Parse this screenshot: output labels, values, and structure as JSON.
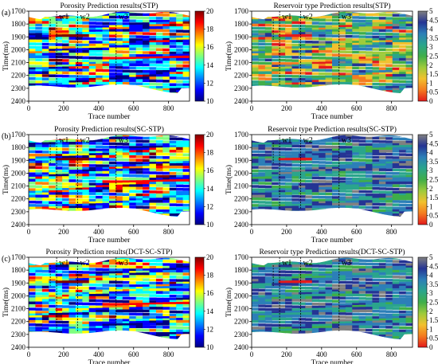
{
  "chart_data": [
    {
      "type": "heatmap",
      "panel_label": "(a)",
      "title": "Porosity Prediction results(STP)",
      "xlabel": "Trace number",
      "ylabel": "Time(ms)",
      "xlim": [
        0,
        920
      ],
      "ylim": [
        2400,
        1700
      ],
      "x_ticks": [
        0,
        200,
        400,
        600,
        800
      ],
      "y_ticks": [
        1700,
        1800,
        1900,
        2000,
        2100,
        2200,
        2300,
        2400
      ],
      "colorbar": {
        "range": [
          10,
          20
        ],
        "ticks": [
          10,
          12,
          14,
          16,
          18,
          20
        ],
        "colormap": "jet"
      },
      "wells": [
        {
          "name": "w1",
          "trace": 160
        },
        {
          "name": "w2",
          "trace": 280
        },
        {
          "name": "w3",
          "trace": 500
        }
      ]
    },
    {
      "type": "heatmap",
      "panel_label": "",
      "title": "Reservoir type Prediction results(STP)",
      "xlabel": "Trace number",
      "ylabel": "Time(ms)",
      "xlim": [
        0,
        920
      ],
      "ylim": [
        2400,
        1700
      ],
      "x_ticks": [
        0,
        200,
        400,
        600,
        800
      ],
      "y_ticks": [
        1700,
        1800,
        1900,
        2000,
        2100,
        2200,
        2300,
        2400
      ],
      "colorbar": {
        "range": [
          0,
          5
        ],
        "ticks": [
          0,
          0.5,
          1,
          1.5,
          2,
          2.5,
          3,
          3.5,
          4,
          4.5,
          5
        ],
        "colormap": "reservoir"
      },
      "wells": [
        {
          "name": "w1",
          "trace": 160
        },
        {
          "name": "w2",
          "trace": 280
        },
        {
          "name": "w3",
          "trace": 500
        }
      ]
    },
    {
      "type": "heatmap",
      "panel_label": "(b)",
      "title": "Porosity Prediction results(SC-STP)",
      "xlabel": "Trace number",
      "ylabel": "Time(ms)",
      "xlim": [
        0,
        920
      ],
      "ylim": [
        2400,
        1700
      ],
      "x_ticks": [
        0,
        200,
        400,
        600,
        800
      ],
      "y_ticks": [
        1700,
        1800,
        1900,
        2000,
        2100,
        2200,
        2300,
        2400
      ],
      "colorbar": {
        "range": [
          10,
          20
        ],
        "ticks": [
          10,
          12,
          14,
          16,
          18,
          20
        ],
        "colormap": "jet"
      },
      "wells": [
        {
          "name": "w1",
          "trace": 160
        },
        {
          "name": "w2",
          "trace": 280
        },
        {
          "name": "w3",
          "trace": 500
        }
      ]
    },
    {
      "type": "heatmap",
      "panel_label": "",
      "title": "Reservoir type Prediction results(SC-STP)",
      "xlabel": "Trace number",
      "ylabel": "Time(ms)",
      "xlim": [
        0,
        920
      ],
      "ylim": [
        2400,
        1700
      ],
      "x_ticks": [
        0,
        200,
        400,
        600,
        800
      ],
      "y_ticks": [
        1700,
        1800,
        1900,
        2000,
        2100,
        2200,
        2300,
        2400
      ],
      "colorbar": {
        "range": [
          0,
          5
        ],
        "ticks": [
          0,
          0.5,
          1,
          1.5,
          2,
          2.5,
          3,
          3.5,
          4,
          4.5,
          5
        ],
        "colormap": "reservoir"
      },
      "wells": [
        {
          "name": "w1",
          "trace": 160
        },
        {
          "name": "w2",
          "trace": 280
        },
        {
          "name": "w3",
          "trace": 500
        }
      ]
    },
    {
      "type": "heatmap",
      "panel_label": "(c)",
      "title": "Porosity Prediction results(DCT-SC-STP)",
      "xlabel": "Trace number",
      "ylabel": "Time(ms)",
      "xlim": [
        0,
        920
      ],
      "ylim": [
        2400,
        1700
      ],
      "x_ticks": [
        0,
        200,
        400,
        600,
        800
      ],
      "y_ticks": [
        1700,
        1800,
        1900,
        2000,
        2100,
        2200,
        2300,
        2400
      ],
      "colorbar": {
        "range": [
          10,
          20
        ],
        "ticks": [
          10,
          12,
          14,
          16,
          18,
          20
        ],
        "colormap": "jet"
      },
      "wells": [
        {
          "name": "w1",
          "trace": 160
        },
        {
          "name": "w2",
          "trace": 280
        },
        {
          "name": "w3",
          "trace": 500
        }
      ]
    },
    {
      "type": "heatmap",
      "panel_label": "",
      "title": "Reservoir type Prediction results(DCT-SC-STP)",
      "xlabel": "Trace number",
      "ylabel": "Time(ms)",
      "xlim": [
        0,
        920
      ],
      "ylim": [
        2400,
        1700
      ],
      "x_ticks": [
        0,
        200,
        400,
        600,
        800
      ],
      "y_ticks": [
        1700,
        1800,
        1900,
        2000,
        2100,
        2200,
        2300,
        2400
      ],
      "colorbar": {
        "range": [
          0,
          5
        ],
        "ticks": [
          0,
          0.5,
          1,
          1.5,
          2,
          2.5,
          3,
          3.5,
          4,
          4.5,
          5
        ],
        "colormap": "reservoir"
      },
      "wells": [
        {
          "name": "w1",
          "trace": 160
        },
        {
          "name": "w2",
          "trace": 280
        },
        {
          "name": "w3",
          "trace": 500
        }
      ]
    }
  ],
  "colors": {
    "jet": [
      "#00007f",
      "#0000ff",
      "#007fff",
      "#00ffff",
      "#7fff7f",
      "#ffff00",
      "#ff7f00",
      "#ff0000",
      "#7f0000"
    ],
    "reservoir": [
      "#e31a1c",
      "#f47b20",
      "#f2c12e",
      "#9ecb3c",
      "#3fae49",
      "#2aa58c",
      "#2c7fb8",
      "#253494",
      "#808080"
    ],
    "axis": "#000000",
    "well_line": "#000000"
  }
}
